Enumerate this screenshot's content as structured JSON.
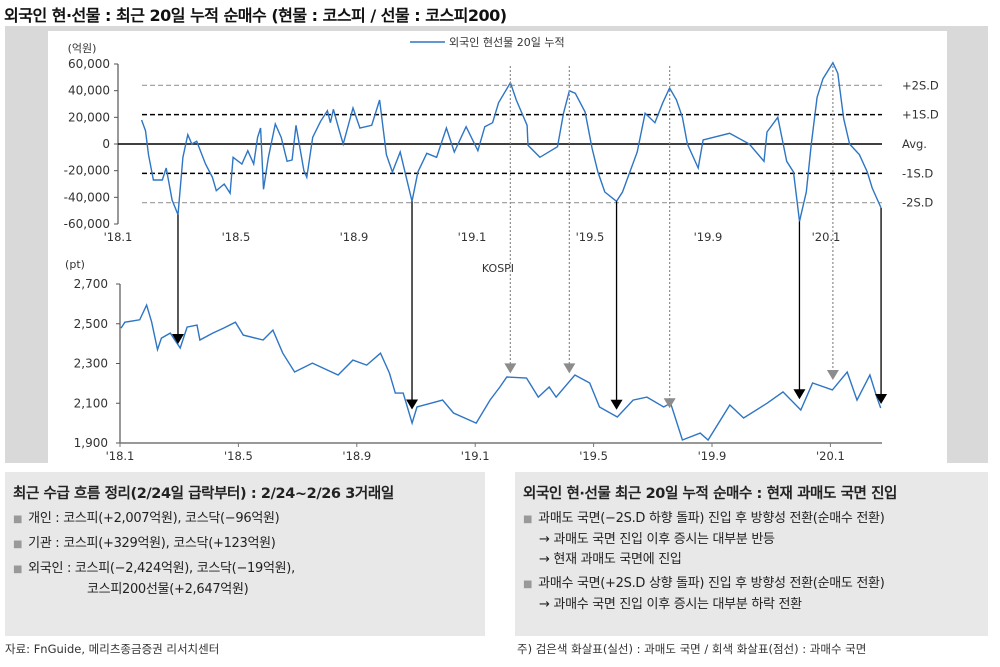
{
  "title": "외국인 현·선물 : 최근 20일 누적 순매수 (현물 : 코스피 / 선물 : 코스피200)",
  "colors": {
    "line": "#2e75c4",
    "oversold_arrow": "#000000",
    "overbought_arrow": "#8c8c8c",
    "panel": "#d9d9d9",
    "box": "#e8e8e8"
  },
  "chart_data": [
    {
      "type": "line",
      "legend": "외국인 현선물 20일 누적",
      "legend_position": "top",
      "yunit": "(억원)",
      "ylim": [
        -60000,
        60000
      ],
      "yticks": [
        "60,000",
        "40,000",
        "20,000",
        "0",
        "-20,000",
        "-40,000",
        "-60,000"
      ],
      "ytick_values": [
        60000,
        40000,
        20000,
        0,
        -20000,
        -40000,
        -60000
      ],
      "xticks": [
        "'18.1",
        "'18.5",
        "'18.9",
        "'19.1",
        "'19.5",
        "'19.9",
        "'20.1"
      ],
      "xtick_dates": [
        "2018-01-01",
        "2018-05-01",
        "2018-09-01",
        "2019-01-01",
        "2019-05-01",
        "2019-09-01",
        "2020-01-01"
      ],
      "reference_lines": [
        {
          "label": "+2S.D",
          "value": 44000,
          "style": "gray-dashed"
        },
        {
          "label": "+1S.D",
          "value": 22000,
          "style": "black-dashed"
        },
        {
          "label": "Avg.",
          "value": 0,
          "style": "solid"
        },
        {
          "label": "-1S.D",
          "value": -22000,
          "style": "black-dashed"
        },
        {
          "label": "-2S.D",
          "value": -44000,
          "style": "gray-dashed"
        }
      ],
      "series": [
        {
          "name": "외국인 현선물 20일 누적",
          "x": [
            "2018-01-25",
            "2018-01-29",
            "2018-02-02",
            "2018-02-07",
            "2018-02-16",
            "2018-02-20",
            "2018-02-26",
            "2018-03-02",
            "2018-03-07",
            "2018-03-12",
            "2018-03-16",
            "2018-03-21",
            "2018-03-30",
            "2018-04-07",
            "2018-04-11",
            "2018-04-19",
            "2018-04-25",
            "2018-04-28",
            "2018-05-07",
            "2018-05-13",
            "2018-05-19",
            "2018-05-23",
            "2018-05-26",
            "2018-05-29",
            "2018-06-04",
            "2018-06-11",
            "2018-06-17",
            "2018-06-23",
            "2018-06-28",
            "2018-07-02",
            "2018-07-10",
            "2018-07-13",
            "2018-07-19",
            "2018-07-27",
            "2018-08-04",
            "2018-08-07",
            "2018-08-10",
            "2018-08-16",
            "2018-08-20",
            "2018-08-30",
            "2018-09-07",
            "2018-09-19",
            "2018-09-27",
            "2018-10-04",
            "2018-10-10",
            "2018-10-18",
            "2018-10-30",
            "2018-11-06",
            "2018-11-15",
            "2018-11-25",
            "2018-12-05",
            "2018-12-13",
            "2018-12-25",
            "2019-01-07",
            "2019-01-14",
            "2019-01-22",
            "2019-01-28",
            "2019-02-10",
            "2019-02-16",
            "2019-02-27",
            "2019-02-28",
            "2019-03-10",
            "2019-03-28",
            "2019-04-04",
            "2019-04-10",
            "2019-04-16",
            "2019-04-26",
            "2019-05-03",
            "2019-05-09",
            "2019-05-16",
            "2019-05-28",
            "2019-06-04",
            "2019-06-19",
            "2019-06-27",
            "2019-07-07",
            "2019-07-15",
            "2019-07-22",
            "2019-07-29",
            "2019-08-05",
            "2019-08-10",
            "2019-08-21",
            "2019-08-26",
            "2019-09-23",
            "2019-10-13",
            "2019-10-28",
            "2019-11-01",
            "2019-11-12",
            "2019-11-21",
            "2019-11-28",
            "2019-12-04",
            "2019-12-11",
            "2019-12-16",
            "2019-12-22",
            "2019-12-28",
            "2020-01-08",
            "2020-01-13",
            "2020-01-19",
            "2020-01-25",
            "2020-02-05",
            "2020-02-13",
            "2020-02-18",
            "2020-02-27"
          ],
          "y": [
            18000,
            10000,
            -8000,
            -27000,
            -27000,
            -18000,
            -42000,
            -53000,
            -10000,
            7000,
            0,
            2000,
            -15000,
            -25000,
            -35000,
            -30000,
            -37000,
            -10000,
            -15000,
            -5000,
            -15000,
            5000,
            12000,
            -34000,
            -10000,
            15000,
            5000,
            -13000,
            -12000,
            14000,
            -20000,
            -25000,
            5000,
            17000,
            25000,
            16000,
            26000,
            10000,
            0,
            27000,
            12000,
            14000,
            33000,
            -8000,
            -21000,
            -6000,
            -43000,
            -21000,
            -7000,
            -10000,
            12000,
            -6000,
            13000,
            -5000,
            13000,
            16000,
            31000,
            46000,
            33000,
            14000,
            -1000,
            -10000,
            -2000,
            23000,
            40000,
            38000,
            24000,
            -3000,
            -21000,
            -36000,
            -43000,
            -36000,
            -6000,
            23000,
            16000,
            31000,
            42000,
            33000,
            20000,
            0,
            -18000,
            3000,
            8000,
            0,
            -13000,
            9000,
            20000,
            -13000,
            -21000,
            -58000,
            -36000,
            0,
            35000,
            49000,
            61000,
            53000,
            19000,
            0,
            -8000,
            -21000,
            -33000,
            -48000
          ]
        }
      ]
    },
    {
      "type": "line",
      "label": "KOSPI",
      "yunit": "(pt)",
      "ylim": [
        1900,
        2700
      ],
      "yticks": [
        "2,700",
        "2,500",
        "2,300",
        "2,100",
        "1,900"
      ],
      "ytick_values": [
        2700,
        2500,
        2300,
        2100,
        1900
      ],
      "xticks": [
        "'18.1",
        "'18.5",
        "'18.9",
        "'19.1",
        "'19.5",
        "'19.9",
        "'20.1"
      ],
      "xtick_dates": [
        "2018-01-01",
        "2018-05-01",
        "2018-09-01",
        "2019-01-01",
        "2019-05-01",
        "2019-09-01",
        "2020-01-01"
      ],
      "series": [
        {
          "name": "KOSPI",
          "x": [
            "2018-01-02",
            "2018-01-06",
            "2018-01-21",
            "2018-01-28",
            "2018-02-03",
            "2018-02-09",
            "2018-02-13",
            "2018-02-22",
            "2018-03-02",
            "2018-03-09",
            "2018-03-19",
            "2018-03-22",
            "2018-04-05",
            "2018-04-16",
            "2018-04-28",
            "2018-05-06",
            "2018-05-26",
            "2018-06-06",
            "2018-06-16",
            "2018-06-28",
            "2018-07-16",
            "2018-08-12",
            "2018-08-27",
            "2018-09-11",
            "2018-09-25",
            "2018-10-04",
            "2018-10-10",
            "2018-10-18",
            "2018-10-27",
            "2018-11-02",
            "2018-11-28",
            "2018-12-09",
            "2019-01-02",
            "2019-01-16",
            "2019-01-26",
            "2019-02-03",
            "2019-02-23",
            "2019-03-05",
            "2019-03-16",
            "2019-03-23",
            "2019-04-12",
            "2019-04-27",
            "2019-05-07",
            "2019-05-25",
            "2019-06-11",
            "2019-06-25",
            "2019-07-12",
            "2019-07-19",
            "2019-08-01",
            "2019-08-19",
            "2019-08-27",
            "2019-09-19",
            "2019-10-03",
            "2019-10-27",
            "2019-11-13",
            "2019-12-01",
            "2019-12-13",
            "2020-01-03",
            "2020-01-18",
            "2020-01-28",
            "2020-02-11",
            "2020-02-18",
            "2020-02-22"
          ],
          "y": [
            2478,
            2508,
            2520,
            2594,
            2510,
            2370,
            2428,
            2453,
            2378,
            2483,
            2493,
            2418,
            2453,
            2478,
            2508,
            2443,
            2418,
            2468,
            2352,
            2257,
            2302,
            2242,
            2317,
            2292,
            2352,
            2252,
            2151,
            2151,
            2000,
            2081,
            2116,
            2051,
            2000,
            2116,
            2182,
            2232,
            2227,
            2131,
            2182,
            2131,
            2242,
            2202,
            2081,
            2031,
            2116,
            2131,
            2081,
            2101,
            1915,
            1950,
            1915,
            2091,
            2026,
            2101,
            2157,
            2066,
            2202,
            2167,
            2257,
            2116,
            2242,
            2131,
            2076
          ]
        }
      ],
      "arrows": {
        "oversold_solid_black": [
          "2018-03-02",
          "2018-10-30",
          "2019-05-28",
          "2019-12-04",
          "2020-02-27"
        ],
        "overbought_dashed_gray": [
          "2019-02-10",
          "2019-04-10",
          "2019-07-22",
          "2020-01-08"
        ]
      }
    }
  ],
  "left_box": {
    "heading": "최근 수급 흐름 정리(2/24일 급락부터) : 2/24~2/26 3거래일",
    "items": [
      {
        "line1": "개인 : 코스피(+2,007억원), 코스닥(−96억원)"
      },
      {
        "line1": "기관 : 코스피(+329억원), 코스닥(+123억원)"
      },
      {
        "line1": "외국인 : 코스피(−2,424억원), 코스닥(−19억원),",
        "line2": "코스피200선물(+2,647억원)"
      }
    ]
  },
  "right_box": {
    "heading": "외국인 현·선물 최근 20일 누적 순매수 : 현재 과매도 국면 진입",
    "items": [
      {
        "line1": "과매도 국면(−2S.D 하향 돌파) 진입 후 방향성 전환(순매수 전환)",
        "line2": "→ 과매도 국면 진입 이후 증시는 대부분 반등",
        "line3": "→ 현재 과매도 국면에 진입"
      },
      {
        "line1": "과매수 국면(+2S.D 상향 돌파) 진입 후 방향성 전환(순매도 전환)",
        "line2": "→ 과매수 국면 진입 이후 증시는 대부분 하락 전환"
      }
    ]
  },
  "source": "자료: FnGuide, 메리츠종금증권 리서치센터",
  "note": "주) 검은색 화살표(실선) : 과매도 국면 / 회색 화살표(점선) : 과매수 국면"
}
